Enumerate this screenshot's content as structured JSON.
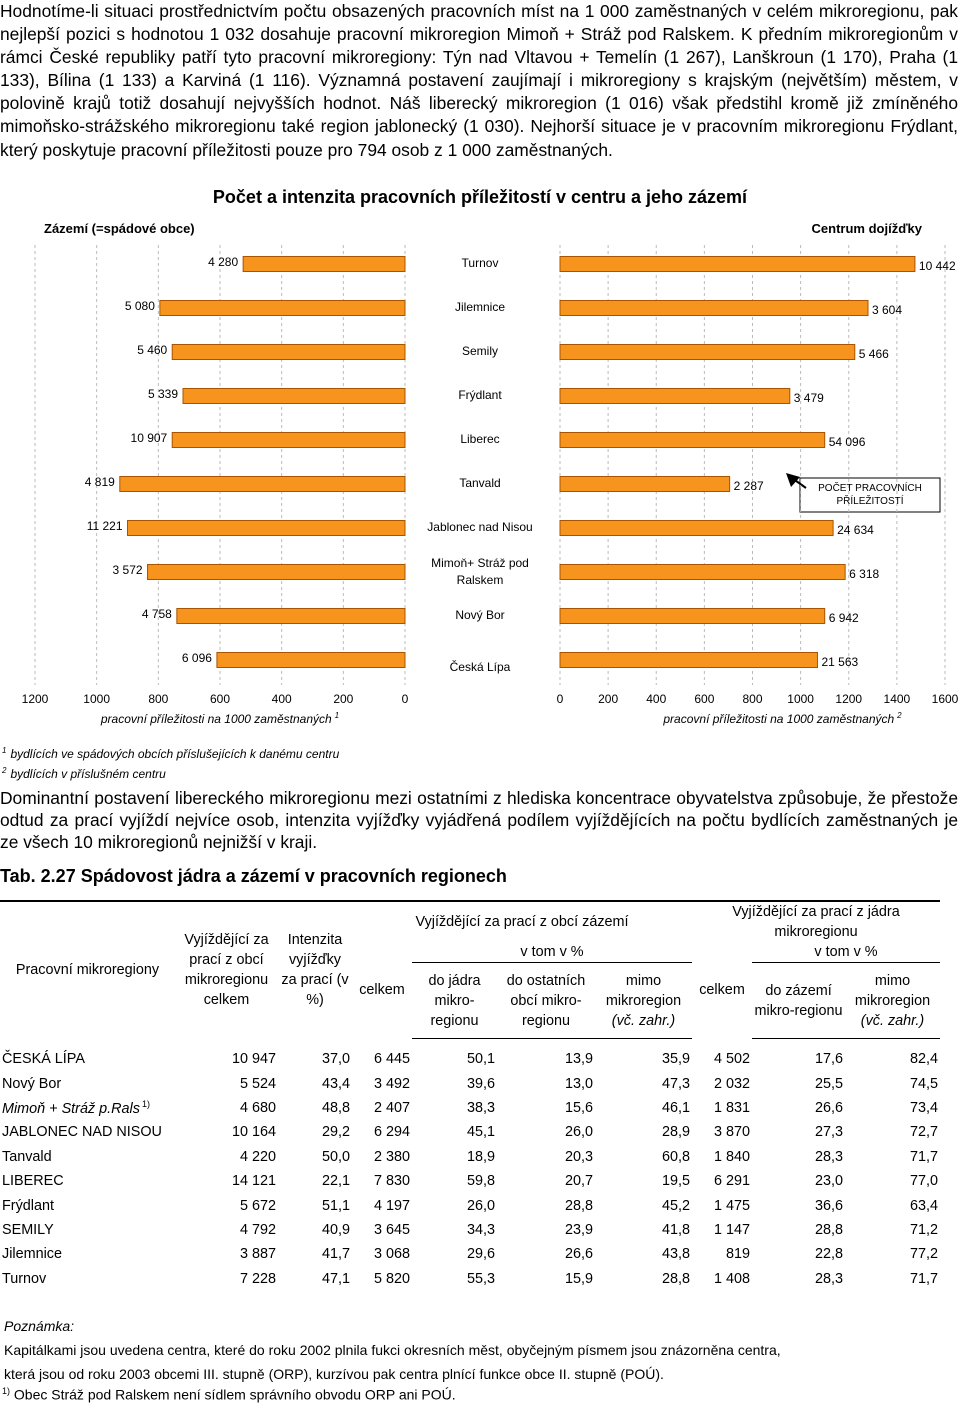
{
  "intro": "Hodnotíme-li situaci prostřednictvím počtu obsazených pracovních míst na 1 000 zaměstnaných v celém mikroregionu, pak nejlepší pozici s hodnotou 1 032 dosahuje pracovní mikroregion Mimoň + Stráž pod Ralskem. K předním mikroregionům v rámci České republiky patří tyto pracovní mikroregiony: Týn nad Vltavou + Temelín (1 267), Lanškroun (1 170), Praha (1 133), Bílina (1 133) a Karviná (1 116). Významná postavení zaujímají i mikroregiony s krajským (největším) městem, v polovině krajů totiž dosahují nejvyšších hodnot. Náš liberecký mikroregion (1 016) však předstihl kromě již zmíněného mimoňsko-strážského mikroregionu také region jablonecký (1 030). Nejhorší situace je v pracovním mikroregionu Frýdlant, který poskytuje pracovní příležitosti pouze pro 794 osob z 1 000 zaměstnaných.",
  "chart_data": {
    "type": "butterfly-bar",
    "title": "Počet a intenzita pracovních příležitostí v centru a jeho zázemí",
    "left_title": "Zázemí (=spádové obce)",
    "right_title": "Centrum dojížďky",
    "categories": [
      "Turnov",
      "Jilemnice",
      "Semily",
      "Frýdlant",
      "Liberec",
      "Tanvald",
      "Jablonec nad Nisou",
      "Mimoň+ Stráž pod Ralskem",
      "Nový Bor",
      "Česká Lípa"
    ],
    "color": "#f7941d",
    "edge_color": "#a85400",
    "grid": true,
    "left": {
      "values": [
        525,
        795,
        755,
        720,
        755,
        925,
        900,
        835,
        740,
        610
      ],
      "count_labels": [
        "4 280",
        "5 080",
        "5 460",
        "5 339",
        "10 907",
        "4 819",
        "11 221",
        "3 572",
        "4 758",
        "6 096"
      ],
      "xlim": [
        1200,
        0
      ],
      "xticks": [
        1200,
        1000,
        800,
        600,
        400,
        200,
        0
      ],
      "xlabel": "pracovní příležitosti na 1000 zaměstnaných",
      "xlabel_note": "1"
    },
    "right": {
      "values": [
        1475,
        1280,
        1225,
        955,
        1100,
        705,
        1135,
        1185,
        1100,
        1070
      ],
      "count_labels": [
        "10 442",
        "3 604",
        "5 466",
        "3 479",
        "54 096",
        "2 287",
        "24 634",
        "6 318",
        "6 942",
        "21 563"
      ],
      "xlim": [
        0,
        1600
      ],
      "xticks": [
        0,
        200,
        400,
        600,
        800,
        1000,
        1200,
        1400,
        1600
      ],
      "xlabel": "pracovní příležitosti na 1000 zaměstnaných",
      "xlabel_note": "2"
    },
    "annotation": "POČET PRACOVNÍCH PŘÍLEŽITOSTÍ"
  },
  "footnotes": [
    {
      "mark": "1",
      "text": "bydlících ve spádových obcích příslušejících k danému centru"
    },
    {
      "mark": "2",
      "text": "bydlících v příslušném centru"
    }
  ],
  "paragraph2": "Dominantní postavení libereckého mikroregionu mezi ostatními z hlediska koncentrace obyvatelstva způsobuje, že přestože odtud za prací vyjíždí nejvíce osob, intenzita vyjížďky vyjádřená podílem vyjíždějících na počtu bydlících zaměstnaných je ze všech 10 mikroregionů nejnižší v kraji.",
  "table": {
    "title": "Tab. 2.27 Spádovost jádra a zázemí v pracovních regionech",
    "headers": {
      "region": "Pracovní mikroregiony",
      "total": "Vyjíždějící za prací z obcí mikroregionu celkem",
      "intensity": "Intenzita vyjížďky za prací (v %)",
      "hinterland": "Vyjíždějící za prací z obcí zázemí",
      "core": "Vyjíždějící za prací z jádra mikroregionu",
      "in_which": [
        "v tom v %",
        "v tom v %"
      ],
      "celkem": [
        "celkem",
        "celkem"
      ],
      "sub": [
        "do jádra mikro-regionu",
        "do ostatních obcí mikro-regionu",
        "mimo mikroregion",
        "do zázemí mikro-regionu",
        "mimo mikroregion"
      ],
      "abroad": [
        "(vč. zahr.)",
        "(vč. zahr.)"
      ]
    },
    "rows": [
      [
        "ČESKÁ LÍPA",
        "10 947",
        "37,0",
        "6 445",
        "50,1",
        "13,9",
        "35,9",
        "4 502",
        "17,6",
        "82,4"
      ],
      [
        "Nový Bor",
        "5 524",
        "43,4",
        "3 492",
        "39,6",
        "13,0",
        "47,3",
        "2 032",
        "25,5",
        "74,5"
      ],
      [
        "Mimoň + Stráž p.Rals",
        "4 680",
        "48,8",
        "2 407",
        "38,3",
        "15,6",
        "46,1",
        "1 831",
        "26,6",
        "73,4"
      ],
      [
        "JABLONEC NAD NISOU",
        "10 164",
        "29,2",
        "6 294",
        "45,1",
        "26,0",
        "28,9",
        "3 870",
        "27,3",
        "72,7"
      ],
      [
        "Tanvald",
        "4 220",
        "50,0",
        "2 380",
        "18,9",
        "20,3",
        "60,8",
        "1 840",
        "28,3",
        "71,7"
      ],
      [
        "LIBEREC",
        "14 121",
        "22,1",
        "7 830",
        "59,8",
        "20,7",
        "19,5",
        "6 291",
        "23,0",
        "77,0"
      ],
      [
        "Frýdlant",
        "5 672",
        "51,1",
        "4 197",
        "26,0",
        "28,8",
        "45,2",
        "1 475",
        "36,6",
        "63,4"
      ],
      [
        "SEMILY",
        "4 792",
        "40,9",
        "3 645",
        "34,3",
        "23,9",
        "41,8",
        "1 147",
        "28,8",
        "71,2"
      ],
      [
        "Jilemnice",
        "3 887",
        "41,7",
        "3 068",
        "29,6",
        "26,6",
        "43,8",
        "819",
        "22,8",
        "77,2"
      ],
      [
        "Turnov",
        "7 228",
        "47,1",
        "5 820",
        "55,3",
        "15,9",
        "28,8",
        "1 408",
        "28,3",
        "71,7"
      ]
    ],
    "row_notes": [
      null,
      null,
      "1)",
      null,
      null,
      null,
      null,
      null,
      null,
      null
    ]
  },
  "notes": {
    "title": "Poznámka:",
    "lines": [
      "Kapitálkami jsou uvedena centra, které do roku 2002 plnila fukci okresních měst, obyčejným písmem jsou znázorněna centra,",
      "která jsou od roku 2003 obcemi III. stupně (ORP), kurzívou pak centra plnící funkce obce II. stupně (POÚ)."
    ],
    "footnote": {
      "mark": "1)",
      "text": "Obec Stráž pod Ralskem není sídlem správního obvodu ORP ani POÚ."
    }
  }
}
